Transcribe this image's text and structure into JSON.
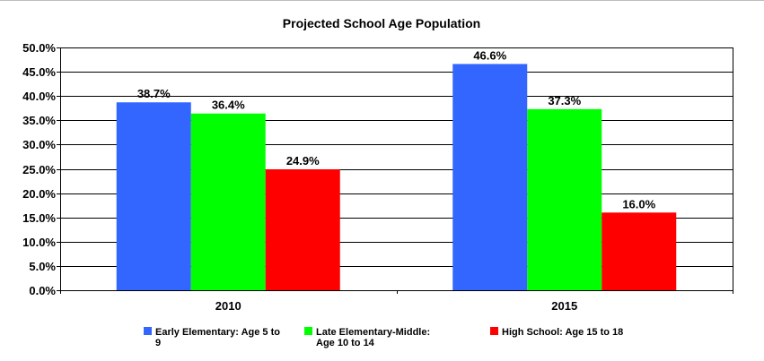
{
  "chart_data": {
    "type": "bar",
    "title": "Projected School Age Population",
    "categories": [
      "2010",
      "2015"
    ],
    "series": [
      {
        "name": "Early Elementary: Age 5 to 9",
        "values": [
          38.7,
          46.6
        ],
        "color": "#3366ff"
      },
      {
        "name": "Late Elementary-Middle: Age 10 to 14",
        "values": [
          36.4,
          37.3
        ],
        "color": "#00ff00"
      },
      {
        "name": "High School: Age 15 to 18",
        "values": [
          24.9,
          16.0
        ],
        "color": "#ff0000"
      }
    ],
    "data_labels": [
      [
        "38.7%",
        "46.6%"
      ],
      [
        "36.4%",
        "37.3%"
      ],
      [
        "24.9%",
        "16.0%"
      ]
    ],
    "y_ticks": [
      "0.0%",
      "5.0%",
      "10.0%",
      "15.0%",
      "20.0%",
      "25.0%",
      "30.0%",
      "35.0%",
      "40.0%",
      "45.0%",
      "50.0%"
    ],
    "ylim": [
      0,
      50
    ],
    "y_step": 5,
    "grid": true,
    "legend_position": "bottom",
    "legend_lines": [
      [
        "Early Elementary: Age 5 to",
        "9"
      ],
      [
        "Late Elementary-Middle:",
        "Age 10 to 14"
      ],
      [
        "High School: Age 15 to 18"
      ]
    ]
  }
}
